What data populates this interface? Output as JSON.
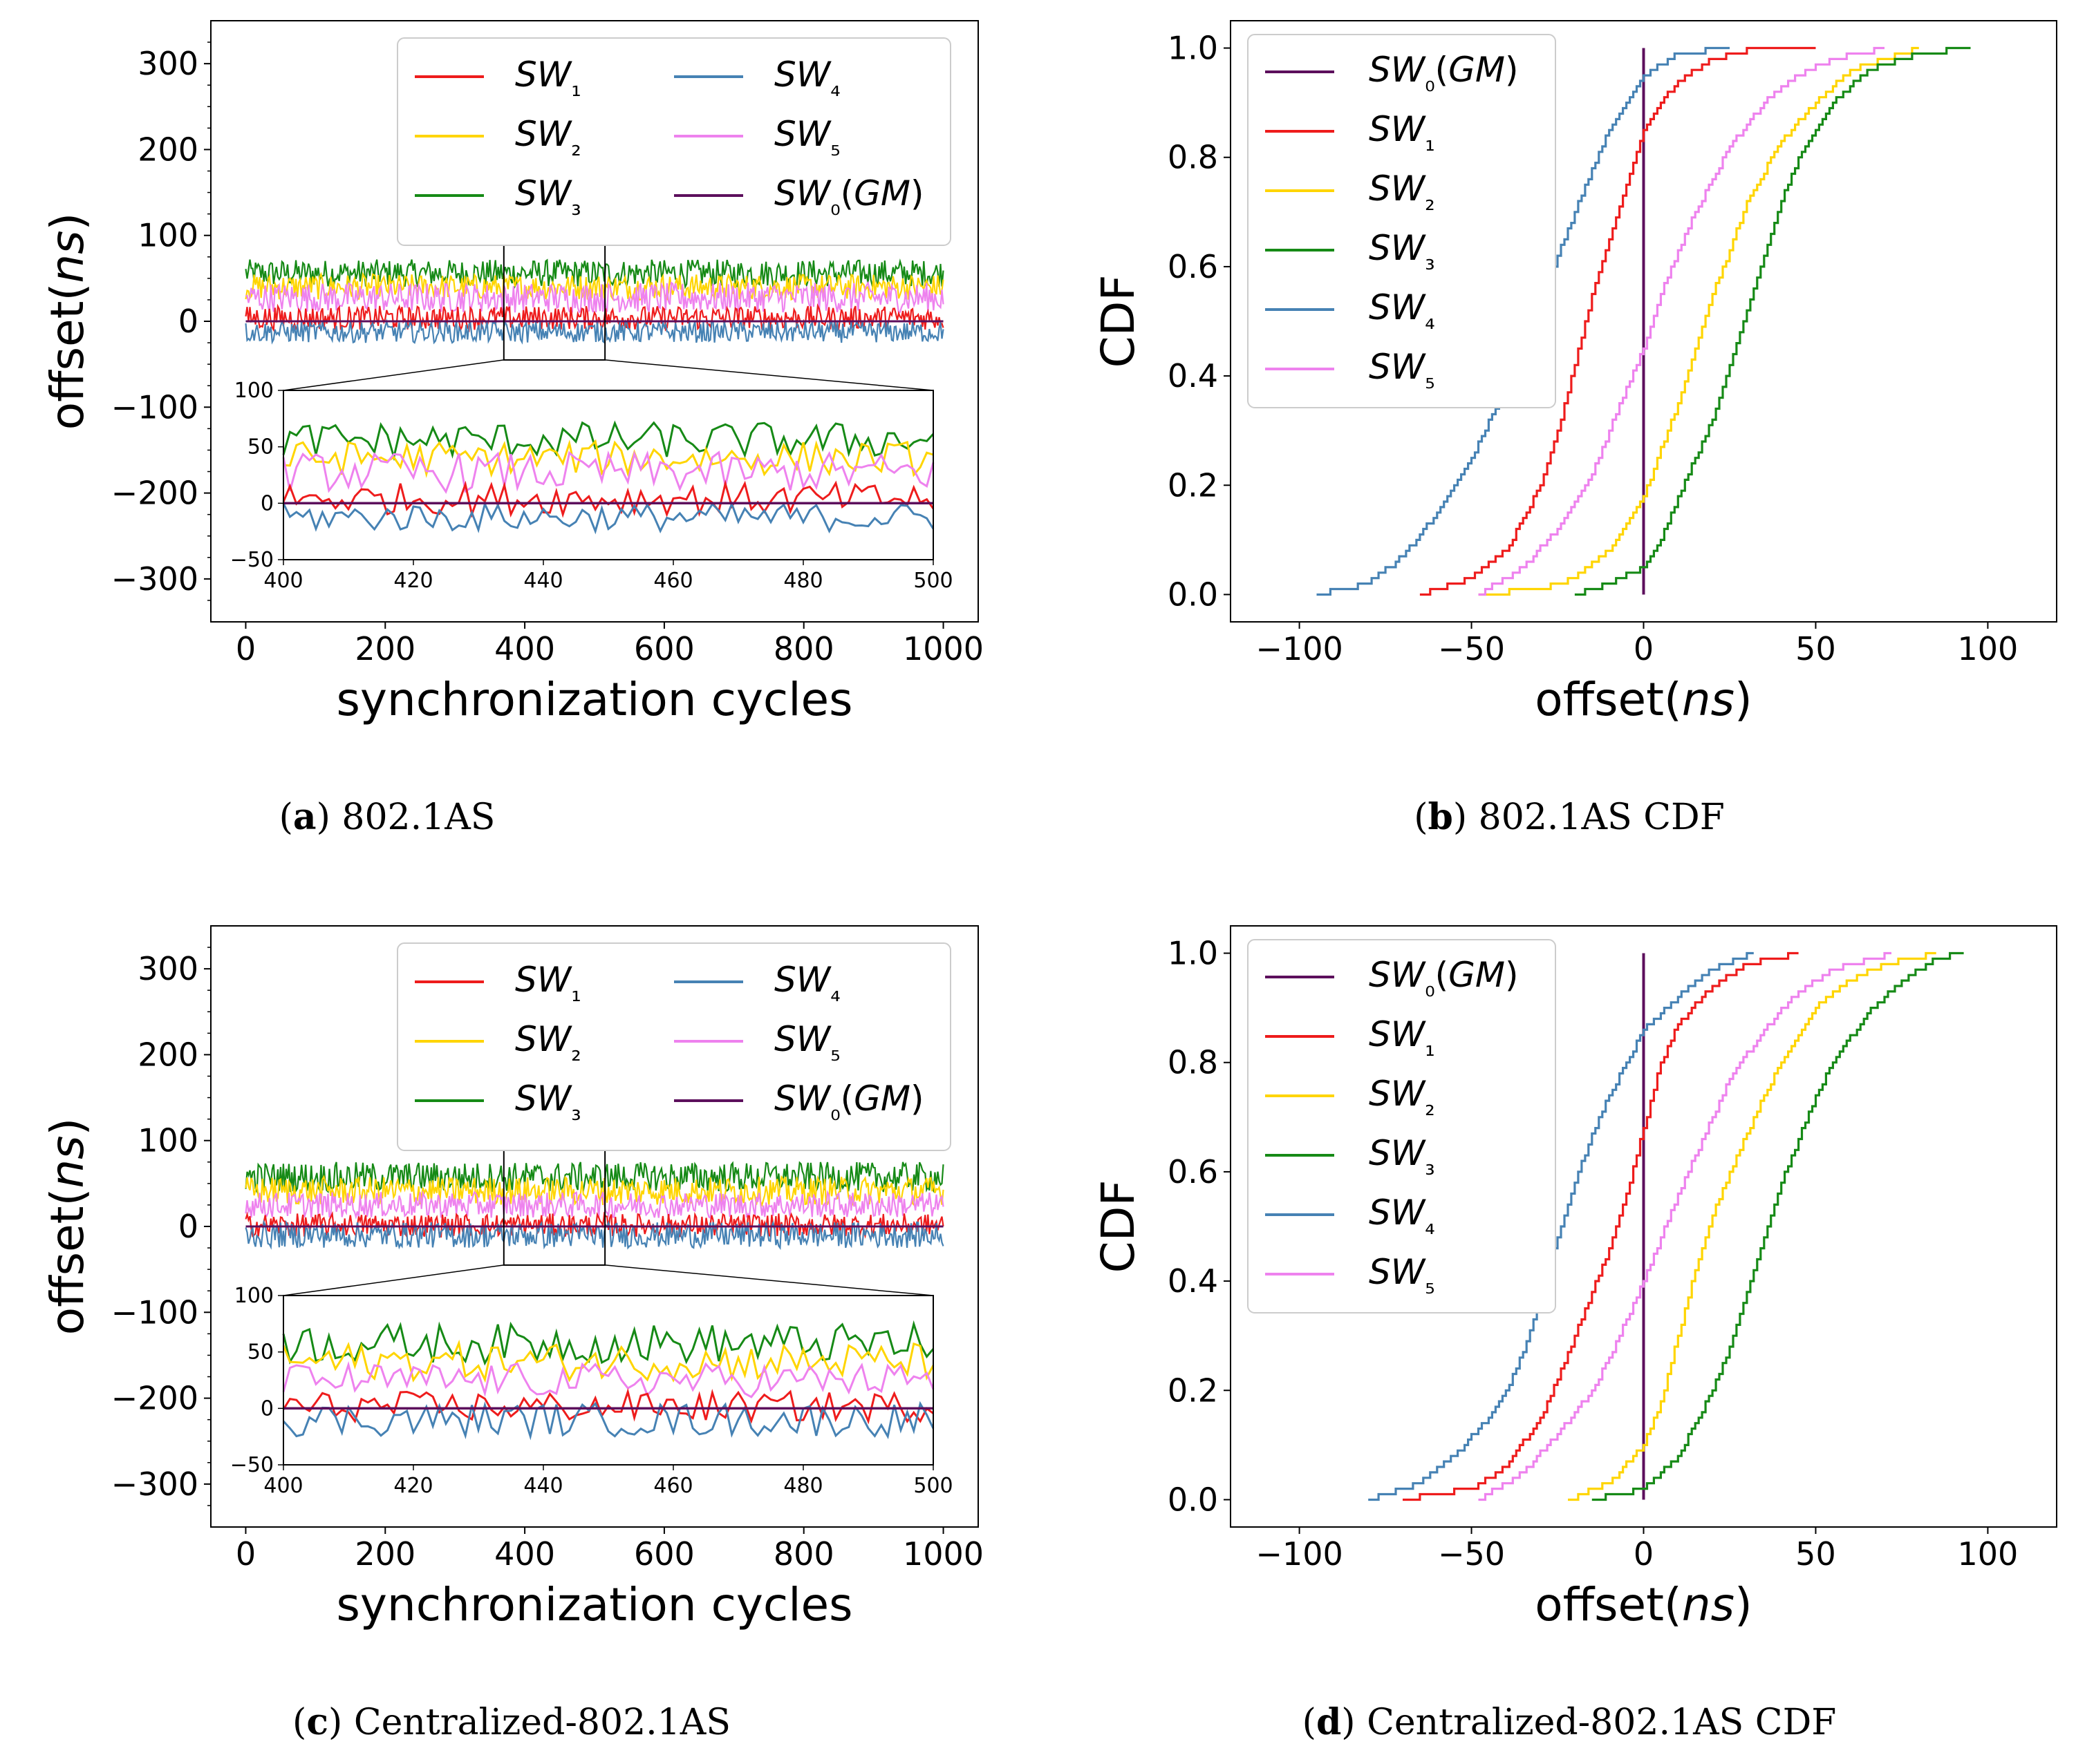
{
  "colors": {
    "SW1": "#ee1c1c",
    "SW2": "#ffd500",
    "SW3": "#168a16",
    "SW4": "#4682b4",
    "SW5": "#ee82ee",
    "SW0GM": "#5c0f5c"
  },
  "panels": {
    "a": {
      "caption_letter": "a",
      "caption_text": "802.1AS"
    },
    "b": {
      "caption_letter": "b",
      "caption_text": "802.1AS CDF"
    },
    "c": {
      "caption_letter": "c",
      "caption_text": "Centralized-802.1AS"
    },
    "d": {
      "caption_letter": "d",
      "caption_text": "Centralized-802.1AS CDF"
    }
  },
  "legend_labels": {
    "SW1": "SW₁",
    "SW2": "SW₂",
    "SW3": "SW₃",
    "SW4": "SW₄",
    "SW5": "SW₅",
    "SW0GM": "SW₀(GM)"
  },
  "chart_data": [
    {
      "panel": "a",
      "type": "line",
      "title": "",
      "xlabel": "synchronization cycles",
      "ylabel": "offset(ns)",
      "xlim": [
        -50,
        1050
      ],
      "ylim": [
        -350,
        350
      ],
      "xticks": [
        0,
        200,
        400,
        600,
        800,
        1000
      ],
      "yticks": [
        -300,
        -200,
        -100,
        0,
        100,
        200,
        300
      ],
      "legend": "upper-right, 2 columns",
      "series_stats": [
        {
          "name": "SW1",
          "mean": 0,
          "min": -10,
          "max": 18
        },
        {
          "name": "SW2",
          "mean": 40,
          "min": 25,
          "max": 55
        },
        {
          "name": "SW3",
          "mean": 55,
          "min": 40,
          "max": 72
        },
        {
          "name": "SW4",
          "mean": -12,
          "min": -25,
          "max": 0
        },
        {
          "name": "SW5",
          "mean": 25,
          "min": 10,
          "max": 45
        },
        {
          "name": "SW0GM",
          "mean": 0,
          "min": 0,
          "max": 0
        }
      ],
      "inset": {
        "xlim": [
          400,
          500
        ],
        "ylim": [
          -50,
          100
        ],
        "xticks": [
          400,
          420,
          440,
          460,
          480,
          500
        ],
        "yticks": [
          -50,
          0,
          50,
          100
        ]
      }
    },
    {
      "panel": "b",
      "type": "line",
      "title": "",
      "xlabel": "offset(ns)",
      "ylabel": "CDF",
      "xlim": [
        -120,
        120
      ],
      "ylim": [
        -0.05,
        1.05
      ],
      "xticks": [
        -100,
        -50,
        0,
        50,
        100
      ],
      "yticks": [
        0.0,
        0.2,
        0.4,
        0.6,
        0.8,
        1.0
      ],
      "legend": "upper-left",
      "series": [
        {
          "name": "SW0GM",
          "x": [
            0,
            0
          ],
          "y": [
            0.0,
            1.0
          ]
        },
        {
          "name": "SW1",
          "x": [
            -65,
            -50,
            -40,
            -30,
            -25,
            -20,
            -15,
            -10,
            -5,
            0,
            5,
            10,
            20,
            30,
            50
          ],
          "y": [
            0.0,
            0.03,
            0.08,
            0.2,
            0.3,
            0.42,
            0.55,
            0.65,
            0.75,
            0.85,
            0.9,
            0.94,
            0.98,
            0.995,
            1.0
          ]
        },
        {
          "name": "SW2",
          "x": [
            -48,
            -30,
            -20,
            -10,
            0,
            10,
            15,
            20,
            25,
            30,
            40,
            50,
            60,
            80
          ],
          "y": [
            0.0,
            0.01,
            0.03,
            0.08,
            0.18,
            0.35,
            0.45,
            0.55,
            0.63,
            0.72,
            0.83,
            0.9,
            0.96,
            1.0
          ]
        },
        {
          "name": "SW3",
          "x": [
            -20,
            -10,
            0,
            5,
            10,
            20,
            25,
            30,
            35,
            40,
            45,
            55,
            65,
            80,
            95
          ],
          "y": [
            0.0,
            0.02,
            0.05,
            0.1,
            0.18,
            0.32,
            0.42,
            0.52,
            0.62,
            0.72,
            0.8,
            0.9,
            0.96,
            0.99,
            1.0
          ]
        },
        {
          "name": "SW4",
          "x": [
            -95,
            -80,
            -70,
            -60,
            -50,
            -40,
            -35,
            -30,
            -25,
            -20,
            -15,
            -10,
            -5,
            0,
            10,
            25
          ],
          "y": [
            0.0,
            0.02,
            0.07,
            0.15,
            0.25,
            0.38,
            0.45,
            0.53,
            0.62,
            0.7,
            0.78,
            0.85,
            0.9,
            0.95,
            0.99,
            1.0
          ]
        },
        {
          "name": "SW5",
          "x": [
            -48,
            -35,
            -25,
            -15,
            -10,
            -5,
            0,
            5,
            10,
            15,
            20,
            25,
            35,
            45,
            55,
            70
          ],
          "y": [
            0.0,
            0.05,
            0.12,
            0.22,
            0.3,
            0.38,
            0.45,
            0.55,
            0.63,
            0.7,
            0.76,
            0.82,
            0.9,
            0.95,
            0.98,
            1.0
          ]
        }
      ]
    },
    {
      "panel": "c",
      "type": "line",
      "title": "",
      "xlabel": "synchronization cycles",
      "ylabel": "offset(ns)",
      "xlim": [
        -50,
        1050
      ],
      "ylim": [
        -350,
        350
      ],
      "xticks": [
        0,
        200,
        400,
        600,
        800,
        1000
      ],
      "yticks": [
        -300,
        -200,
        -100,
        0,
        100,
        200,
        300
      ],
      "legend": "upper-right, 2 columns",
      "series_stats": [
        {
          "name": "SW1",
          "mean": 0,
          "min": -12,
          "max": 15
        },
        {
          "name": "SW2",
          "mean": 40,
          "min": 25,
          "max": 58
        },
        {
          "name": "SW3",
          "mean": 55,
          "min": 40,
          "max": 75
        },
        {
          "name": "SW4",
          "mean": -10,
          "min": -25,
          "max": 5
        },
        {
          "name": "SW5",
          "mean": 25,
          "min": 10,
          "max": 40
        },
        {
          "name": "SW0GM",
          "mean": 0,
          "min": 0,
          "max": 0
        }
      ],
      "inset": {
        "xlim": [
          400,
          500
        ],
        "ylim": [
          -50,
          100
        ],
        "xticks": [
          400,
          420,
          440,
          460,
          480,
          500
        ],
        "yticks": [
          -50,
          0,
          50,
          100
        ]
      }
    },
    {
      "panel": "d",
      "type": "line",
      "title": "",
      "xlabel": "offset(ns)",
      "ylabel": "CDF",
      "xlim": [
        -120,
        120
      ],
      "ylim": [
        -0.05,
        1.05
      ],
      "xticks": [
        -100,
        -50,
        0,
        50,
        100
      ],
      "yticks": [
        0.0,
        0.2,
        0.4,
        0.6,
        0.8,
        1.0
      ],
      "legend": "upper-left",
      "series": [
        {
          "name": "SW0GM",
          "x": [
            0,
            0
          ],
          "y": [
            0.0,
            1.0
          ]
        },
        {
          "name": "SW1",
          "x": [
            -70,
            -50,
            -40,
            -30,
            -25,
            -20,
            -15,
            -10,
            -5,
            0,
            5,
            10,
            20,
            30,
            45
          ],
          "y": [
            0.0,
            0.02,
            0.06,
            0.15,
            0.22,
            0.3,
            0.38,
            0.46,
            0.56,
            0.68,
            0.8,
            0.87,
            0.94,
            0.98,
            1.0
          ]
        },
        {
          "name": "SW2",
          "x": [
            -22,
            -10,
            0,
            5,
            10,
            15,
            20,
            25,
            30,
            35,
            40,
            50,
            60,
            70,
            85
          ],
          "y": [
            0.0,
            0.03,
            0.1,
            0.18,
            0.3,
            0.42,
            0.52,
            0.6,
            0.67,
            0.74,
            0.8,
            0.9,
            0.95,
            0.98,
            1.0
          ]
        },
        {
          "name": "SW3",
          "x": [
            -15,
            0,
            10,
            20,
            25,
            30,
            35,
            40,
            45,
            50,
            55,
            65,
            75,
            85,
            93
          ],
          "y": [
            0.0,
            0.02,
            0.08,
            0.2,
            0.28,
            0.38,
            0.48,
            0.58,
            0.66,
            0.74,
            0.8,
            0.89,
            0.95,
            0.99,
            1.0
          ]
        },
        {
          "name": "SW4",
          "x": [
            -80,
            -65,
            -55,
            -45,
            -40,
            -35,
            -30,
            -25,
            -20,
            -15,
            -10,
            -5,
            0,
            10,
            20,
            32
          ],
          "y": [
            0.0,
            0.03,
            0.08,
            0.15,
            0.2,
            0.27,
            0.37,
            0.48,
            0.58,
            0.67,
            0.74,
            0.8,
            0.86,
            0.92,
            0.97,
            1.0
          ]
        },
        {
          "name": "SW5",
          "x": [
            -48,
            -35,
            -25,
            -15,
            -10,
            -5,
            0,
            5,
            10,
            15,
            20,
            25,
            35,
            45,
            55,
            72
          ],
          "y": [
            0.0,
            0.05,
            0.12,
            0.2,
            0.26,
            0.33,
            0.4,
            0.48,
            0.56,
            0.63,
            0.7,
            0.77,
            0.86,
            0.93,
            0.97,
            1.0
          ]
        }
      ]
    }
  ]
}
